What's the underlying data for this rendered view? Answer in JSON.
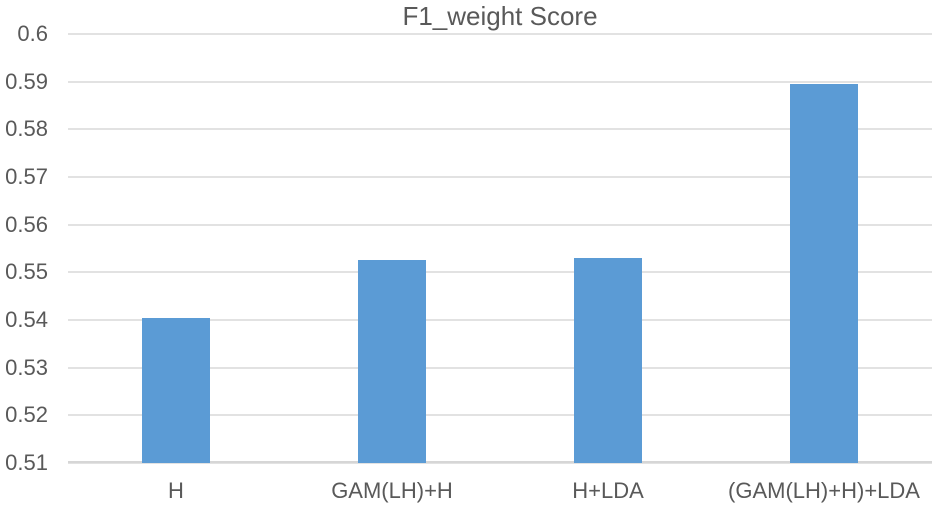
{
  "chart_data": {
    "type": "bar",
    "title": "F1_weight Score",
    "categories": [
      "H",
      "GAM(LH)+H",
      "H+LDA",
      "(GAM(LH)+H)+LDA"
    ],
    "values": [
      0.5405,
      0.5525,
      0.553,
      0.5895
    ],
    "xlabel": "",
    "ylabel": "",
    "ylim": [
      0.51,
      0.6
    ],
    "ytick_step": 0.01,
    "ytick_labels": [
      "0.51",
      "0.52",
      "0.53",
      "0.54",
      "0.55",
      "0.56",
      "0.57",
      "0.58",
      "0.59",
      "0.6"
    ],
    "grid": true,
    "legend": false
  },
  "style": {
    "bar_color": "#5B9BD5",
    "text_color": "#595959",
    "gridline_color": "#E2E2E2",
    "axis_line_color": "#D6D6D6",
    "background": "#FFFFFF"
  }
}
